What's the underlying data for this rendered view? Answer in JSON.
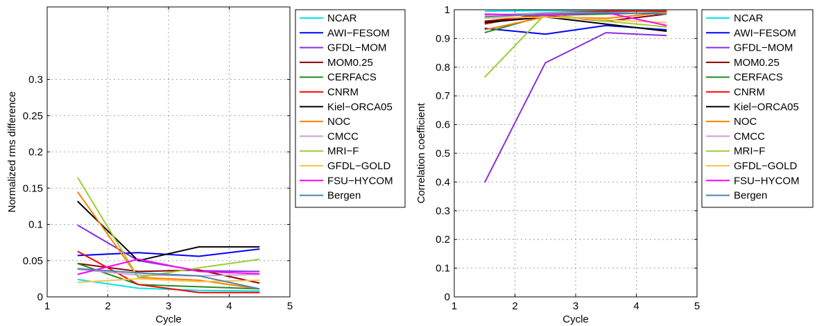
{
  "chart_data": [
    {
      "type": "line",
      "xlabel": "Cycle",
      "ylabel": "Normalized rms difference",
      "xlim": [
        1,
        5
      ],
      "ylim": [
        0,
        0.4
      ],
      "xticks": [
        "1",
        "2",
        "3",
        "4",
        "5"
      ],
      "yticks": [
        "0",
        "0.05",
        "0.1",
        "0.15",
        "0.2",
        "0.25",
        "0.3"
      ],
      "grid": true,
      "legend_position": "outside-right",
      "x": [
        1.5,
        2.5,
        3.5,
        4.5
      ],
      "series": [
        {
          "name": "NCAR",
          "color": "#00e5e5",
          "values": [
            0.024,
            0.012,
            0.009,
            0.008
          ]
        },
        {
          "name": "AWI−FESOM",
          "color": "#0000ff",
          "values": [
            0.057,
            0.061,
            0.056,
            0.066
          ]
        },
        {
          "name": "GFDL−MOM",
          "color": "#8a2be2",
          "values": [
            0.099,
            0.05,
            0.036,
            0.035
          ]
        },
        {
          "name": "MOM0.25",
          "color": "#8b0000",
          "values": [
            0.046,
            0.035,
            0.037,
            0.019
          ]
        },
        {
          "name": "CERFACS",
          "color": "#228b22",
          "values": [
            0.046,
            0.017,
            0.014,
            0.011
          ]
        },
        {
          "name": "CNRM",
          "color": "#ff0000",
          "values": [
            0.063,
            0.017,
            0.006,
            0.006
          ]
        },
        {
          "name": "Kiel−ORCA05",
          "color": "#000000",
          "values": [
            0.132,
            0.05,
            0.069,
            0.069
          ]
        },
        {
          "name": "NOC",
          "color": "#ff8000",
          "values": [
            0.145,
            0.027,
            0.023,
            0.011
          ]
        },
        {
          "name": "CMCC",
          "color": "#c8a2c8",
          "values": [
            0.038,
            0.03,
            0.029,
            0.031
          ]
        },
        {
          "name": "MRI−F",
          "color": "#9acd32",
          "values": [
            0.165,
            0.027,
            0.04,
            0.052
          ]
        },
        {
          "name": "GFDL−GOLD",
          "color": "#ffc04d",
          "values": [
            0.02,
            0.025,
            0.021,
            0.023
          ]
        },
        {
          "name": "FSU−HYCOM",
          "color": "#ff00ff",
          "values": [
            0.031,
            0.052,
            0.035,
            0.032
          ]
        },
        {
          "name": "Bergen",
          "color": "#4682b4",
          "values": [
            0.039,
            0.033,
            0.029,
            0.011
          ]
        }
      ]
    },
    {
      "type": "line",
      "xlabel": "Cycle",
      "ylabel": "Correlation coefficient",
      "xlim": [
        1,
        5
      ],
      "ylim": [
        0,
        1
      ],
      "xticks": [
        "1",
        "2",
        "3",
        "4",
        "5"
      ],
      "yticks": [
        "0",
        "0.1",
        "0.2",
        "0.3",
        "0.4",
        "0.5",
        "0.6",
        "0.7",
        "0.8",
        "0.9",
        "1"
      ],
      "grid": true,
      "legend_position": "outside-right",
      "x": [
        1.5,
        2.5,
        3.5,
        4.5
      ],
      "series": [
        {
          "name": "NCAR",
          "color": "#00e5e5",
          "values": [
            0.995,
            0.997,
            0.998,
            0.998
          ]
        },
        {
          "name": "AWI−FESOM",
          "color": "#0000ff",
          "values": [
            0.935,
            0.915,
            0.945,
            0.93
          ]
        },
        {
          "name": "GFDL−MOM",
          "color": "#8a2be2",
          "values": [
            0.398,
            0.815,
            0.92,
            0.91
          ]
        },
        {
          "name": "MOM0.25",
          "color": "#8b0000",
          "values": [
            0.96,
            0.98,
            0.96,
            0.985
          ]
        },
        {
          "name": "CERFACS",
          "color": "#228b22",
          "values": [
            0.92,
            0.98,
            0.985,
            0.99
          ]
        },
        {
          "name": "CNRM",
          "color": "#ff0000",
          "values": [
            0.95,
            0.99,
            0.995,
            0.995
          ]
        },
        {
          "name": "Kiel−ORCA05",
          "color": "#000000",
          "values": [
            0.955,
            0.975,
            0.95,
            0.925
          ]
        },
        {
          "name": "NOC",
          "color": "#ff8000",
          "values": [
            0.93,
            0.975,
            0.97,
            0.99
          ]
        },
        {
          "name": "CMCC",
          "color": "#c8a2c8",
          "values": [
            0.98,
            0.99,
            0.99,
            0.985
          ]
        },
        {
          "name": "MRI−F",
          "color": "#9acd32",
          "values": [
            0.765,
            0.985,
            0.96,
            0.94
          ]
        },
        {
          "name": "GFDL−GOLD",
          "color": "#ffc04d",
          "values": [
            0.97,
            0.975,
            0.965,
            0.955
          ]
        },
        {
          "name": "FSU−HYCOM",
          "color": "#ff00ff",
          "values": [
            0.985,
            0.98,
            0.99,
            0.945
          ]
        },
        {
          "name": "Bergen",
          "color": "#4682b4",
          "values": [
            0.975,
            0.985,
            0.99,
            0.985
          ]
        }
      ]
    }
  ]
}
